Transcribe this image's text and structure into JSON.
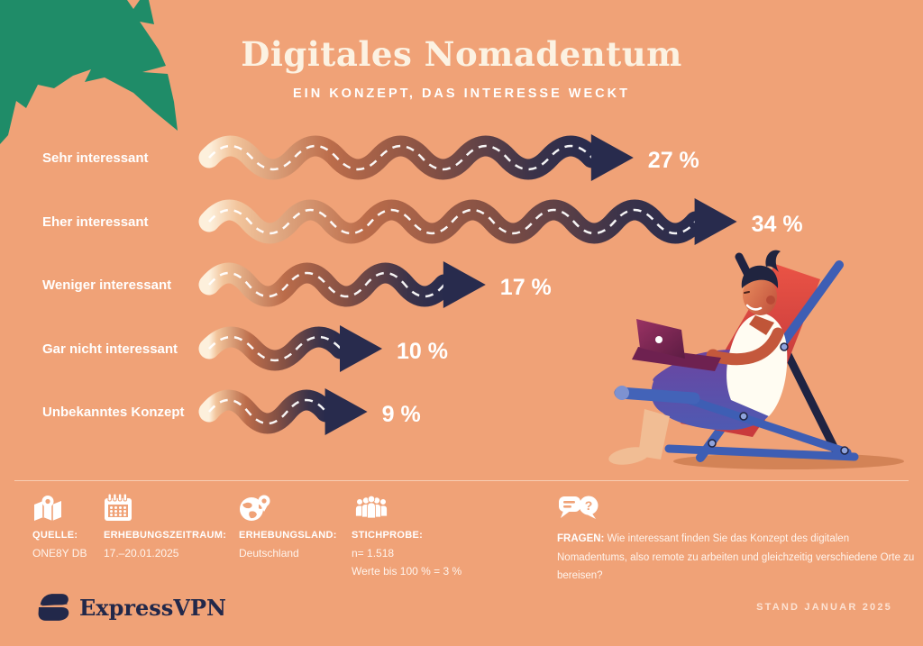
{
  "header": {
    "title": "Digitales Nomadentum",
    "subtitle": "EIN KONZEPT, DAS INTERESSE WECKT"
  },
  "chart_data": {
    "type": "bar",
    "orientation": "horizontal",
    "style": "wavy-road-arrows",
    "categories": [
      "Sehr interessant",
      "Eher interessant",
      "Weniger interessant",
      "Gar nicht interessant",
      "Unbekanntes Konzept"
    ],
    "values": [
      27,
      34,
      17,
      10,
      9
    ],
    "display_values": [
      "27 %",
      "34 %",
      "17 %",
      "10 %",
      "9 %"
    ],
    "unit": "%",
    "xlim": [
      0,
      40
    ],
    "legend": "none",
    "grid": "off"
  },
  "footer": {
    "source": {
      "icon": "map-pin-icon",
      "label": "QUELLE:",
      "value": "ONE8Y DB"
    },
    "period": {
      "icon": "calendar-icon",
      "label": "ERHEBUNGSZEITRAUM:",
      "value": "17.–20.01.2025"
    },
    "country": {
      "icon": "globe-pin-icon",
      "label": "ERHEBUNGSLAND:",
      "value": "Deutschland"
    },
    "sample": {
      "icon": "people-icon",
      "label": "STICHPROBE:",
      "value_line1": "n= 1.518",
      "value_line2": "Werte bis 100 % = 3 %"
    },
    "question": {
      "icon": "speech-bubbles-icon",
      "label": "FRAGEN:",
      "value": "Wie interessant finden Sie das Konzept des digitalen Nomadentums, also remote zu arbeiten und gleichzeitig verschiedene Orte zu bereisen?"
    }
  },
  "branding": {
    "logo_text": "ExpressVPN",
    "date_stamp": "STAND JANUAR 2025"
  },
  "colors": {
    "background": "#F0A277",
    "accent_green": "#1F8C68",
    "dark_navy": "#272B4D",
    "chair_red": "#E0473D",
    "frame_blue": "#3E5EB4",
    "laptop_magenta": "#8C2D5E",
    "text_white": "#FFFFFF"
  }
}
